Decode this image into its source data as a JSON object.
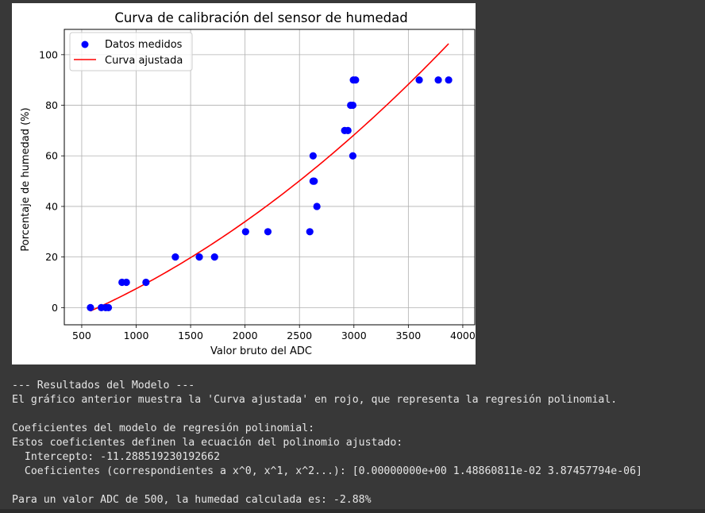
{
  "chart_data": {
    "type": "scatter",
    "title": "Curva de calibración del sensor de humedad",
    "xlabel": "Valor bruto del ADC",
    "ylabel": "Porcentaje de humedad (%)",
    "xlim": [
      340,
      4110
    ],
    "ylim": [
      -6.8,
      110
    ],
    "xticks": [
      500,
      1000,
      1500,
      2000,
      2500,
      3000,
      3500,
      4000
    ],
    "yticks": [
      0,
      20,
      40,
      60,
      80,
      100
    ],
    "grid": true,
    "legend_position": "top-left",
    "series": [
      {
        "name": "Datos medidos",
        "kind": "scatter",
        "color": "#0000ff",
        "points": [
          [
            580,
            0
          ],
          [
            680,
            0
          ],
          [
            720,
            0
          ],
          [
            745,
            0
          ],
          [
            870,
            10
          ],
          [
            910,
            10
          ],
          [
            1090,
            10
          ],
          [
            1360,
            20
          ],
          [
            1580,
            20
          ],
          [
            1720,
            20
          ],
          [
            2005,
            30
          ],
          [
            2210,
            30
          ],
          [
            2595,
            30
          ],
          [
            2660,
            40
          ],
          [
            2625,
            50
          ],
          [
            2635,
            50
          ],
          [
            2625,
            60
          ],
          [
            2990,
            60
          ],
          [
            2915,
            70
          ],
          [
            2945,
            70
          ],
          [
            2970,
            80
          ],
          [
            2990,
            80
          ],
          [
            2995,
            90
          ],
          [
            3015,
            90
          ],
          [
            3600,
            90
          ],
          [
            3775,
            90
          ],
          [
            3870,
            90
          ]
        ]
      },
      {
        "name": "Curva ajustada",
        "kind": "line",
        "color": "#ff0000",
        "equation": {
          "intercept": -11.288519230192662,
          "coefficients": [
            0.0,
            0.0148860811,
            3.87457794e-06
          ]
        },
        "x_range": [
          580,
          3870
        ]
      }
    ]
  },
  "output": {
    "lines": [
      "--- Resultados del Modelo ---",
      "El gráfico anterior muestra la 'Curva ajustada' en rojo, que representa la regresión polinomial.",
      "",
      "Coeficientes del modelo de regresión polinomial:",
      "Estos coeficientes definen la ecuación del polinomio ajustado:",
      "  Intercepto: -11.288519230192662",
      "  Coeficientes (correspondientes a x^0, x^1, x^2...): [0.00000000e+00 1.48860811e-02 3.87457794e-06]",
      "",
      "Para un valor ADC de 500, la humedad calculada es: -2.88%"
    ]
  }
}
